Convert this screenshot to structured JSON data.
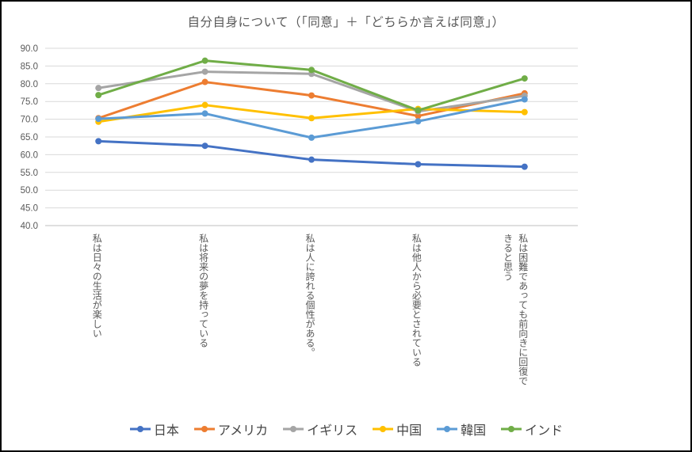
{
  "window": {
    "background": "#ffffff",
    "border_color": "#000000"
  },
  "chart_data": {
    "type": "line",
    "title": "自分自身について（「同意」＋「どちらか言えば同意」）",
    "categories": [
      "私は日々の生活が楽しい",
      "私は将来の夢を持っている",
      "私は人に誇れる個性がある。",
      "私は他人から必要とされている",
      "私は困難であっても前向きに回復できると思う"
    ],
    "series": [
      {
        "name": "日本",
        "color": "#4472C4",
        "values": [
          63.8,
          62.5,
          58.6,
          57.3,
          56.6
        ]
      },
      {
        "name": "アメリカ",
        "color": "#ED7D31",
        "values": [
          70.3,
          80.5,
          76.7,
          70.9,
          77.3
        ]
      },
      {
        "name": "イギリス",
        "color": "#A5A5A5",
        "values": [
          78.8,
          83.4,
          82.8,
          72.2,
          76.6
        ]
      },
      {
        "name": "中国",
        "color": "#FFC000",
        "values": [
          69.3,
          74.0,
          70.3,
          72.9,
          72.0
        ]
      },
      {
        "name": "韓国",
        "color": "#5B9BD5",
        "values": [
          70.1,
          71.6,
          64.8,
          69.4,
          75.6
        ]
      },
      {
        "name": "インド",
        "color": "#70AD47",
        "values": [
          76.8,
          86.5,
          83.9,
          72.5,
          81.5
        ]
      }
    ],
    "ylim": [
      40,
      90
    ],
    "ytick_step": 5,
    "ytick_labels": [
      "90.0",
      "85.0",
      "80.0",
      "75.0",
      "70.0",
      "65.0",
      "60.0",
      "55.0",
      "50.0",
      "45.0",
      "40.0"
    ],
    "grid": true,
    "legend_position": "bottom",
    "colors": {
      "gridline": "#D9D9D9",
      "axis_line": "#BFBFBF",
      "tick_label": "#595959",
      "category_label": "#595959",
      "title": "#595959",
      "legend_text": "#454545"
    }
  }
}
